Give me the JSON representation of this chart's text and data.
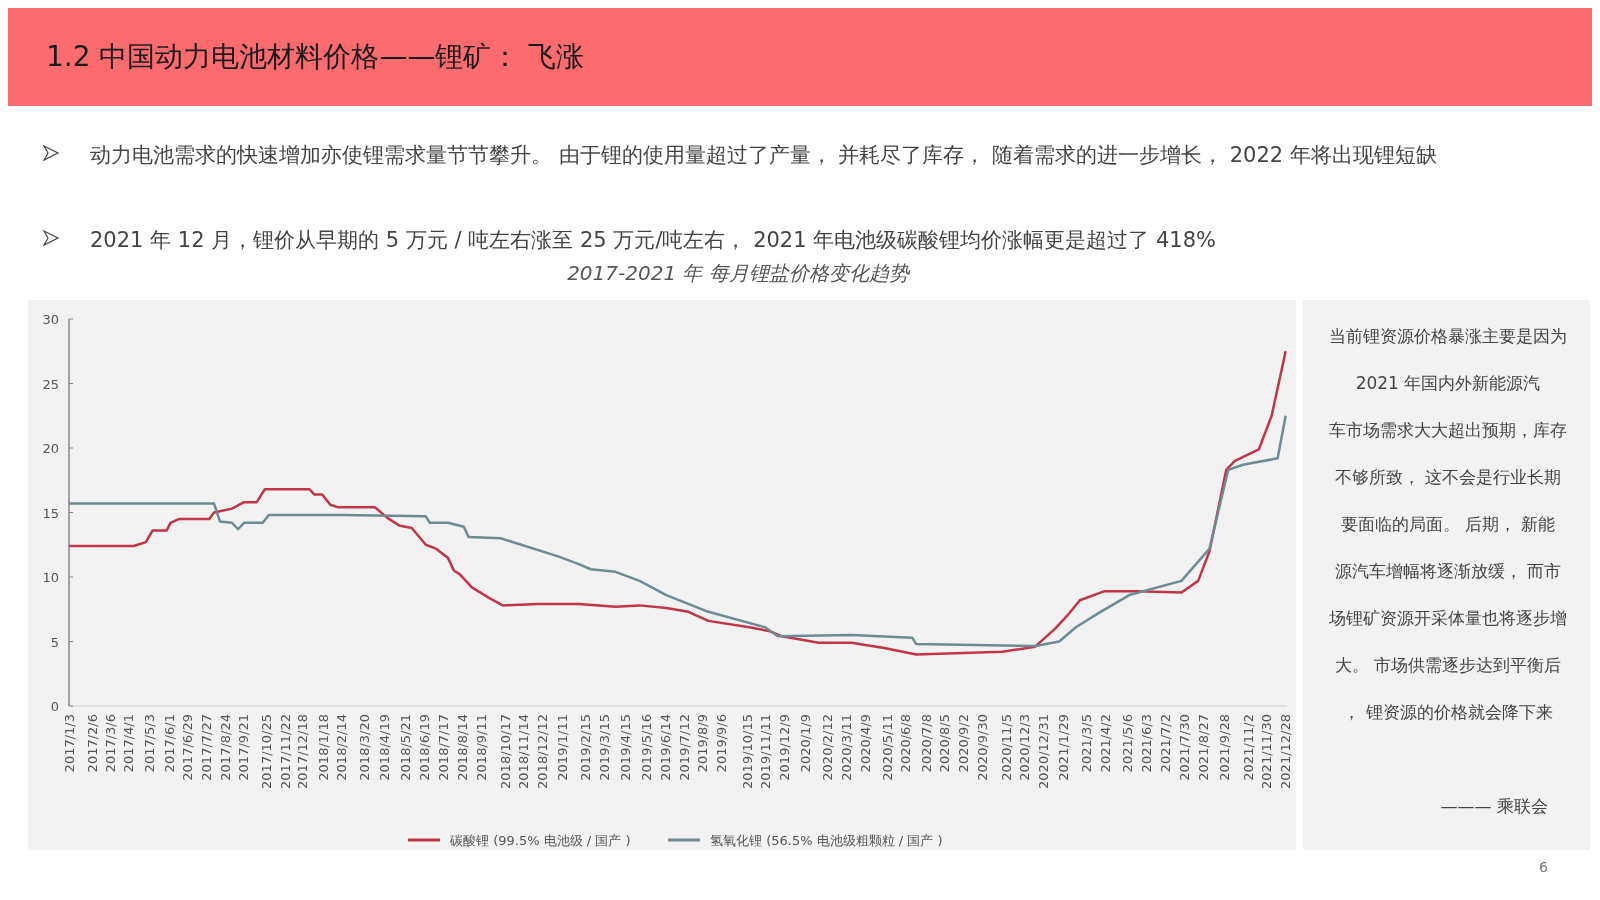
{
  "chart_data": {
    "type": "line",
    "title": "1.2  中国动力电池材料价格——锂矿： 飞涨",
    "subtitle": "2017-2021 年 每月锂盐价格变化趋势",
    "annotations": [
      "动力电池需求的快速增加亦使锂需求量节节攀升。 由于锂的使用量超过了产量， 并耗尽了库存， 随着需求的进一步增长， 2022 年将出现锂短缺",
      "2021 年 12 月，锂价从早期的 5 万元 / 吨左右涨至 25 万元/吨左右， 2021 年电池级碳酸锂均价涨幅更是超过了 418%",
      "当前锂资源价格暴涨主要是因为 2021 年国内外新能源汽车市场需求大大超出预期，库存不够所致， 这不会是行业长期要面临的局面。 后期， 新能源汽车增幅将逐渐放缓， 而市场锂矿资源开采体量也将逐步增大。 市场供需逐步达到平衡后， 锂资源的价格就会降下来",
      "——— 乘联会",
      "6"
    ],
    "xlim": [
      "2017-01-03",
      "2021-12-31"
    ],
    "xticks": [
      {
        "value": "2017-01-03",
        "label": "2017/1/3"
      },
      {
        "value": "2017-02-06",
        "label": "2017/2/6"
      },
      {
        "value": "2017-03-06",
        "label": "2017/3/6"
      },
      {
        "value": "2017-04-01",
        "label": "2017/4/1"
      },
      {
        "value": "2017-05-03",
        "label": "2017/5/3"
      },
      {
        "value": "2017-06-01",
        "label": "2017/6/1"
      },
      {
        "value": "2017-06-29",
        "label": "2017/6/29"
      },
      {
        "value": "2017-07-27",
        "label": "2017/7/27"
      },
      {
        "value": "2017-08-24",
        "label": "2017/8/24"
      },
      {
        "value": "2017-09-21",
        "label": "2017/9/21"
      },
      {
        "value": "2017-10-25",
        "label": "2017/10/25"
      },
      {
        "value": "2017-11-22",
        "label": "2017/11/22"
      },
      {
        "value": "2017-12-18",
        "label": "2017/12/18"
      },
      {
        "value": "2018-01-18",
        "label": "2018/1/18"
      },
      {
        "value": "2018-02-14",
        "label": "2018/2/14"
      },
      {
        "value": "2018-03-20",
        "label": "2018/3/20"
      },
      {
        "value": "2018-04-19",
        "label": "2018/4/19"
      },
      {
        "value": "2018-05-21",
        "label": "2018/5/21"
      },
      {
        "value": "2018-06-19",
        "label": "2018/6/19"
      },
      {
        "value": "2018-07-17",
        "label": "2018/7/17"
      },
      {
        "value": "2018-08-14",
        "label": "2018/8/14"
      },
      {
        "value": "2018-09-11",
        "label": "2018/9/11"
      },
      {
        "value": "2018-10-17",
        "label": "2018/10/17"
      },
      {
        "value": "2018-11-14",
        "label": "2018/11/14"
      },
      {
        "value": "2018-12-12",
        "label": "2018/12/12"
      },
      {
        "value": "2019-01-11",
        "label": "2019/1/11"
      },
      {
        "value": "2019-02-15",
        "label": "2019/2/15"
      },
      {
        "value": "2019-03-15",
        "label": "2019/3/15"
      },
      {
        "value": "2019-04-15",
        "label": "2019/4/15"
      },
      {
        "value": "2019-05-16",
        "label": "2019/5/16"
      },
      {
        "value": "2019-06-14",
        "label": "2019/6/14"
      },
      {
        "value": "2019-07-12",
        "label": "2019/7/12"
      },
      {
        "value": "2019-08-09",
        "label": "2019/8/9"
      },
      {
        "value": "2019-09-06",
        "label": "2019/9/6"
      },
      {
        "value": "2019-10-15",
        "label": "2019/10/15"
      },
      {
        "value": "2019-11-11",
        "label": "2019/11/11"
      },
      {
        "value": "2019-12-09",
        "label": "2019/12/9"
      },
      {
        "value": "2020-01-09",
        "label": "2020/1/9"
      },
      {
        "value": "2020-02-12",
        "label": "2020/2/12"
      },
      {
        "value": "2020-03-11",
        "label": "2020/3/11"
      },
      {
        "value": "2020-04-09",
        "label": "2020/4/9"
      },
      {
        "value": "2020-05-11",
        "label": "2020/5/11"
      },
      {
        "value": "2020-06-08",
        "label": "2020/6/8"
      },
      {
        "value": "2020-07-08",
        "label": "2020/7/8"
      },
      {
        "value": "2020-08-05",
        "label": "2020/8/5"
      },
      {
        "value": "2020-09-02",
        "label": "2020/9/2"
      },
      {
        "value": "2020-09-30",
        "label": "2020/9/30"
      },
      {
        "value": "2020-11-05",
        "label": "2020/11/5"
      },
      {
        "value": "2020-12-03",
        "label": "2020/12/3"
      },
      {
        "value": "2020-12-31",
        "label": "2020/12/31"
      },
      {
        "value": "2021-01-29",
        "label": "2021/1/29"
      },
      {
        "value": "2021-03-05",
        "label": "2021/3/5"
      },
      {
        "value": "2021-04-02",
        "label": "2021/4/2"
      },
      {
        "value": "2021-05-06",
        "label": "2021/5/6"
      },
      {
        "value": "2021-06-03",
        "label": "2021/6/3"
      },
      {
        "value": "2021-07-02",
        "label": "2021/7/2"
      },
      {
        "value": "2021-07-30",
        "label": "2021/7/30"
      },
      {
        "value": "2021-08-27",
        "label": "2021/8/27"
      },
      {
        "value": "2021-09-28",
        "label": "2021/9/28"
      },
      {
        "value": "2021-11-02",
        "label": "2021/11/2"
      },
      {
        "value": "2021-11-30",
        "label": "2021/11/30"
      },
      {
        "value": "2021-12-28",
        "label": "2021/12/28"
      }
    ],
    "ylim": [
      0,
      30
    ],
    "yticks": [
      0,
      5,
      10,
      15,
      20,
      25,
      30
    ],
    "grid": false,
    "legend": "bottom",
    "series": [
      {
        "name": "碳酸锂 (99.5% 电池级 / 国产 )",
        "color": "#c0354a",
        "x": [
          "2017-01-03",
          "2017-04-10",
          "2017-04-28",
          "2017-05-08",
          "2017-05-29",
          "2017-06-04",
          "2017-06-17",
          "2017-08-01",
          "2017-08-08",
          "2017-09-04",
          "2017-09-22",
          "2017-10-11",
          "2017-10-23",
          "2017-12-29",
          "2018-01-05",
          "2018-01-17",
          "2018-01-29",
          "2018-02-10",
          "2018-04-06",
          "2018-04-24",
          "2018-05-12",
          "2018-05-31",
          "2018-06-21",
          "2018-07-06",
          "2018-07-24",
          "2018-08-02",
          "2018-08-11",
          "2018-08-29",
          "2018-09-23",
          "2018-10-14",
          "2018-12-05",
          "2019-02-05",
          "2019-04-01",
          "2019-05-07",
          "2019-06-16",
          "2019-07-19",
          "2019-08-18",
          "2019-10-18",
          "2019-11-18",
          "2019-12-06",
          "2020-01-30",
          "2020-03-19",
          "2020-05-07",
          "2020-06-24",
          "2020-10-31",
          "2020-12-19",
          "2021-01-18",
          "2021-02-05",
          "2021-02-24",
          "2021-04-02",
          "2021-05-20",
          "2021-07-26",
          "2021-08-20",
          "2021-09-06",
          "2021-10-01",
          "2021-10-14",
          "2021-11-19",
          "2021-12-08",
          "2021-12-29"
        ],
        "values": [
          12.4,
          12.4,
          12.7,
          13.6,
          13.6,
          14.2,
          14.5,
          14.5,
          15.0,
          15.3,
          15.8,
          15.8,
          16.8,
          16.8,
          16.4,
          16.4,
          15.6,
          15.4,
          15.4,
          14.6,
          14.0,
          13.8,
          12.5,
          12.2,
          11.5,
          10.5,
          10.2,
          9.2,
          8.4,
          7.8,
          7.9,
          7.9,
          7.7,
          7.8,
          7.6,
          7.3,
          6.6,
          6.1,
          5.8,
          5.4,
          4.9,
          4.9,
          4.5,
          4.0,
          4.2,
          4.6,
          6.0,
          7.0,
          8.2,
          8.9,
          8.9,
          8.8,
          9.7,
          12.0,
          18.3,
          19.0,
          19.9,
          22.5,
          27.5
        ]
      },
      {
        "name": "氢氧化锂 (56.5% 电池级粗颗粒 / 国产 )",
        "color": "#6e8b94",
        "x": [
          "2017-01-03",
          "2017-08-08",
          "2017-08-17",
          "2017-09-04",
          "2017-09-13",
          "2017-09-22",
          "2017-10-20",
          "2017-10-29",
          "2018-02-16",
          "2018-06-21",
          "2018-06-27",
          "2018-07-24",
          "2018-08-17",
          "2018-08-24",
          "2018-10-11",
          "2018-11-05",
          "2019-01-05",
          "2019-02-05",
          "2019-02-23",
          "2019-04-01",
          "2019-05-07",
          "2019-06-16",
          "2019-08-18",
          "2019-11-11",
          "2019-11-30",
          "2020-03-19",
          "2020-06-18",
          "2020-06-24",
          "2020-12-19",
          "2021-01-24",
          "2021-02-18",
          "2021-03-27",
          "2021-05-09",
          "2021-07-26",
          "2021-09-06",
          "2021-10-04",
          "2021-10-26",
          "2021-12-17",
          "2021-12-29"
        ],
        "values": [
          15.7,
          15.7,
          14.3,
          14.2,
          13.7,
          14.2,
          14.2,
          14.8,
          14.8,
          14.7,
          14.2,
          14.2,
          13.9,
          13.1,
          13.0,
          12.6,
          11.6,
          11.0,
          10.6,
          10.4,
          9.7,
          8.6,
          7.3,
          6.1,
          5.4,
          5.5,
          5.3,
          4.8,
          4.65,
          5.0,
          6.1,
          7.3,
          8.6,
          9.7,
          12.2,
          18.3,
          18.7,
          19.2,
          22.5
        ]
      }
    ]
  }
}
